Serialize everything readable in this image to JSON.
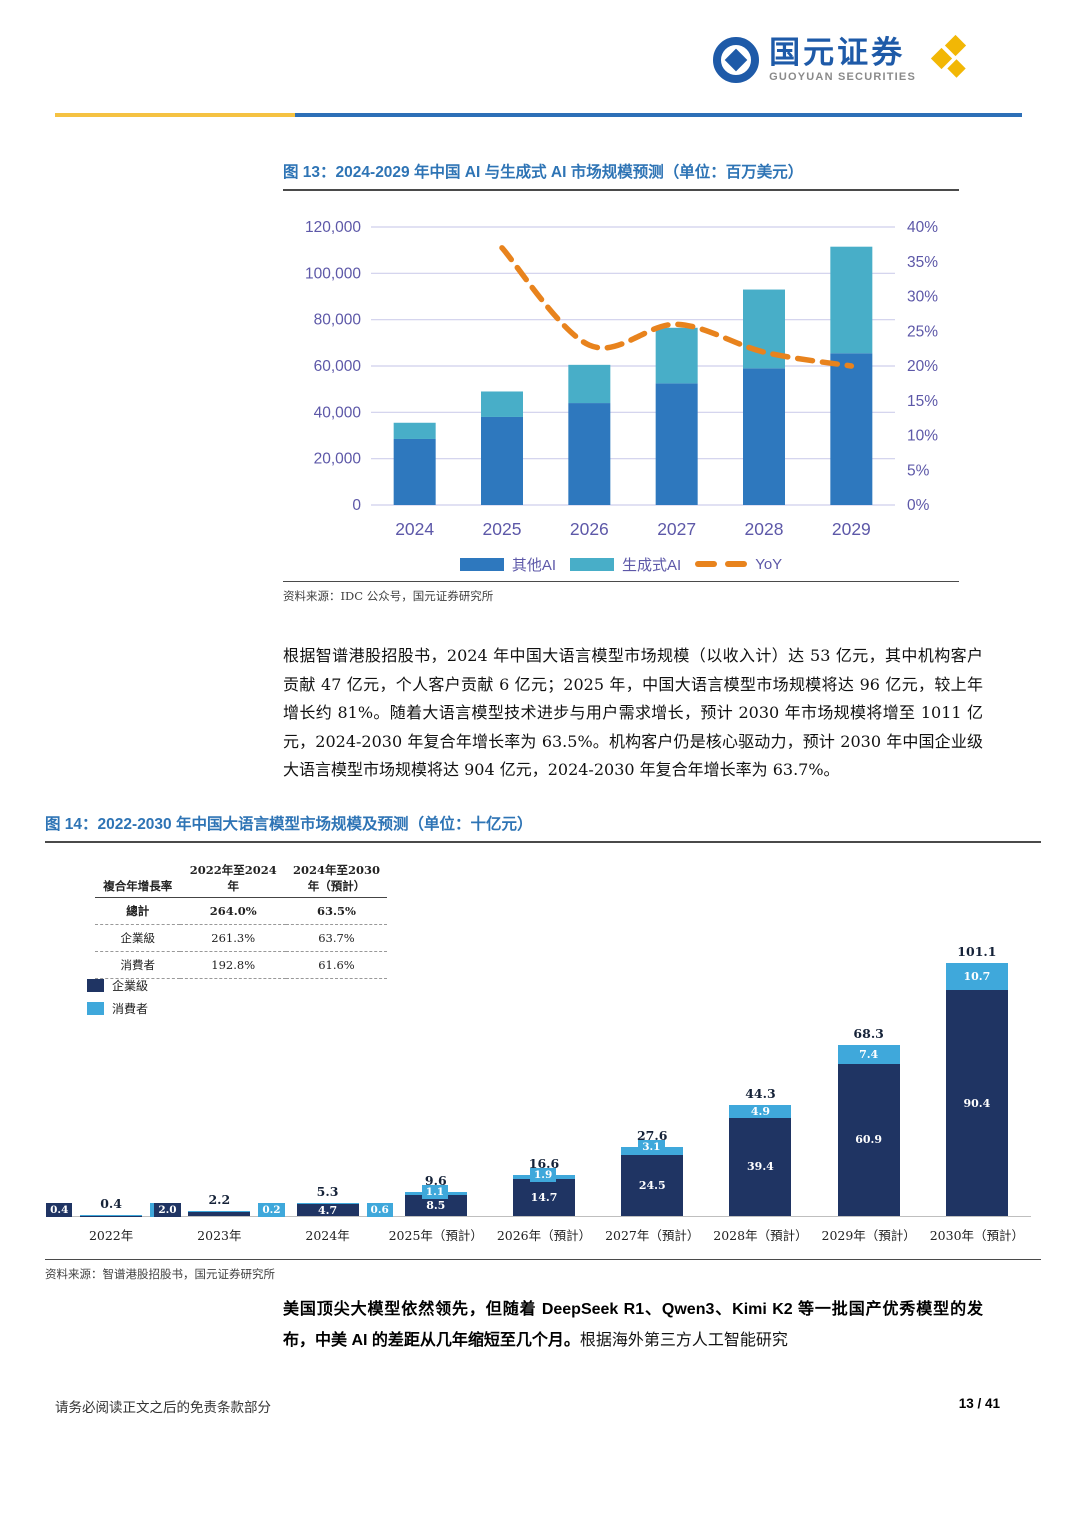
{
  "header": {
    "brand_cn": "国元证券",
    "brand_en": "GUOYUAN SECURITIES"
  },
  "figure13": {
    "title": "图 13：2024-2029 年中国 AI 与生成式 AI 市场规模预测（单位：百万美元）",
    "source": "资料来源：IDC 公众号，国元证券研究所",
    "legend": [
      {
        "label": "其他AI",
        "color": "#2E78BE"
      },
      {
        "label": "生成式AI",
        "color": "#48AEC8"
      },
      {
        "label": "YoY",
        "color": "#E8831D"
      }
    ]
  },
  "paragraph1": "根据智谱港股招股书，2024 年中国大语言模型市场规模（以收入计）达 53 亿元，其中机构客户贡献 47 亿元，个人客户贡献 6 亿元；2025 年，中国大语言模型市场规模将达 96 亿元，较上年增长约 81%。随着大语言模型技术进步与用户需求增长，预计 2030 年市场规模将增至 1011 亿元，2024-2030 年复合年增长率为 63.5%。机构客户仍是核心驱动力，预计 2030 年中国企业级大语言模型市场规模将达 904 亿元，2024-2030 年复合年增长率为 63.7%。",
  "figure14": {
    "title": "图 14：2022-2030 年中国大语言模型市场规模及预测（单位：十亿元）",
    "source": "资料来源：智谱港股招股书，国元证券研究所",
    "table": {
      "col_headers": [
        "複合年增長率",
        "2022年至2024年",
        "2024年至2030年（預計）"
      ],
      "rows": [
        [
          "總計",
          "264.0%",
          "63.5%"
        ],
        [
          "企業級",
          "261.3%",
          "63.7%"
        ],
        [
          "消費者",
          "192.8%",
          "61.6%"
        ]
      ]
    },
    "legend": [
      {
        "label": "企業級",
        "color": "#1F3463"
      },
      {
        "label": "消費者",
        "color": "#3FA8DB"
      }
    ]
  },
  "paragraph2_bold": "美国顶尖大模型依然领先，但随着 DeepSeek R1、Qwen3、Kimi K2 等一批国产优秀模型的发布，中美 AI 的差距从几年缩短至几个月。",
  "paragraph2_rest": "根据海外第三方人工智能研究",
  "footer": {
    "disclaimer": "请务必阅读正文之后的免责条款部分",
    "page": "13 / 41"
  },
  "chart_data": [
    {
      "type": "bar",
      "subtype": "stacked-bar-with-line",
      "title": "2024-2029 年中国 AI 与生成式 AI 市场规模预测（单位：百万美元）",
      "categories": [
        "2024",
        "2025",
        "2026",
        "2027",
        "2028",
        "2029"
      ],
      "series": [
        {
          "name": "其他AI",
          "kind": "bar",
          "color": "#2E78BE",
          "values": [
            28500,
            38000,
            44000,
            52500,
            59000,
            65500
          ]
        },
        {
          "name": "生成式AI",
          "kind": "bar",
          "color": "#48AEC8",
          "values": [
            7000,
            11000,
            16500,
            24000,
            34000,
            46000
          ]
        },
        {
          "name": "YoY",
          "kind": "line",
          "axis": "right",
          "dashed": true,
          "color": "#E8831D",
          "values": [
            null,
            37,
            23,
            26,
            22,
            20
          ]
        }
      ],
      "left_axis": {
        "min": 0,
        "max": 120000,
        "step": 20000,
        "ticks": [
          "0",
          "20,000",
          "40,000",
          "60,000",
          "80,000",
          "100,000",
          "120,000"
        ]
      },
      "right_axis": {
        "min": 0,
        "max": 40,
        "step": 5,
        "ticks": [
          "0%",
          "5%",
          "10%",
          "15%",
          "20%",
          "25%",
          "30%",
          "35%",
          "40%"
        ]
      },
      "grid": true,
      "legend_position": "bottom"
    },
    {
      "type": "bar",
      "subtype": "stacked-bar",
      "title": "2022-2030 年中国大语言模型市场规模及预测（单位：十亿元）",
      "categories": [
        "2022年",
        "2023年",
        "2024年",
        "2025年（預計）",
        "2026年（預計）",
        "2027年（預計）",
        "2028年（預計）",
        "2029年（預計）",
        "2030年（預計）"
      ],
      "series": [
        {
          "name": "企業級",
          "color": "#1F3463",
          "values": [
            0.4,
            2.0,
            4.7,
            8.5,
            14.7,
            24.5,
            39.4,
            60.9,
            90.4
          ]
        },
        {
          "name": "消費者",
          "color": "#3FA8DB",
          "values": [
            0.1,
            0.2,
            0.6,
            1.1,
            1.9,
            3.1,
            4.9,
            7.4,
            10.7
          ]
        }
      ],
      "totals": [
        "0.4",
        "2.2",
        "5.3",
        "9.6",
        "16.6",
        "27.6",
        "44.3",
        "68.3",
        "101.1"
      ],
      "ylim": [
        0,
        105
      ],
      "grid": false,
      "legend_position": "top-left"
    }
  ]
}
